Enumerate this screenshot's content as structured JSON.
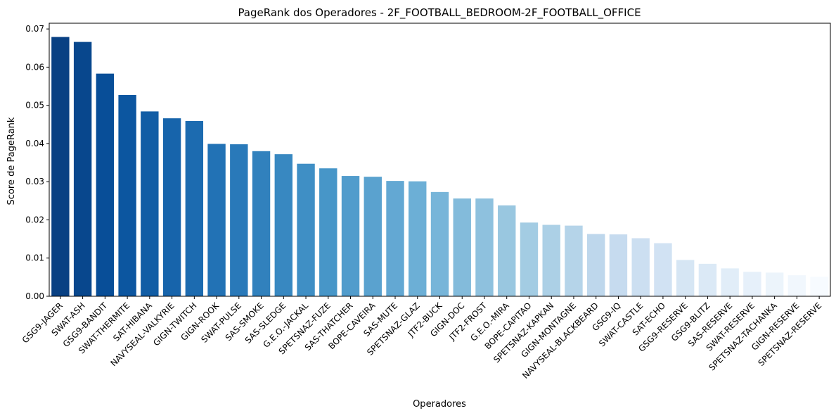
{
  "chart_data": {
    "type": "bar",
    "title": "PageRank dos Operadores - 2F_FOOTBALL_BEDROOM-2F_FOOTBALL_OFFICE",
    "xlabel": "Operadores",
    "ylabel": "Score de PageRank",
    "ylim": [
      0,
      0.0715
    ],
    "yticks": [
      0.0,
      0.01,
      0.02,
      0.03,
      0.04,
      0.05,
      0.06,
      0.07
    ],
    "ytick_labels": [
      "0.00",
      "0.01",
      "0.02",
      "0.03",
      "0.04",
      "0.05",
      "0.06",
      "0.07"
    ],
    "grid": false,
    "legend": "none",
    "colormap": "Blues (dark to light)",
    "color_start": "#08306b",
    "color_end": "#f7fbff",
    "categories": [
      "GSG9-JAGER",
      "SWAT-ASH",
      "GSG9-BANDIT",
      "SWAT-THERMITE",
      "SAT-HIBANA",
      "NAVYSEAL-VALKYRIE",
      "GIGN-TWITCH",
      "GIGN-ROOK",
      "SWAT-PULSE",
      "SAS-SMOKE",
      "SAS-SLEDGE",
      "G.E.O.-JACKAL",
      "SPETSNAZ-FUZE",
      "SAS-THATCHER",
      "BOPE-CAVEIRA",
      "SAS-MUTE",
      "SPETSNAZ-GLAZ",
      "JTF2-BUCK",
      "GIGN-DOC",
      "JTF2-FROST",
      "G.E.O.-MIRA",
      "BOPE-CAPITAO",
      "SPETSNAZ-KAPKAN",
      "GIGN-MONTAGNE",
      "NAVYSEAL-BLACKBEARD",
      "GSG9-IQ",
      "SWAT-CASTLE",
      "SAT-ECHO",
      "GSG9-RESERVE",
      "GSG9-BLITZ",
      "SAS-RESERVE",
      "SWAT-RESERVE",
      "SPETSNAZ-TACHANKA",
      "GIGN-RESERVE",
      "SPETSNAZ-RESERVE"
    ],
    "values": [
      0.0679,
      0.0666,
      0.0583,
      0.0527,
      0.0484,
      0.0466,
      0.0459,
      0.0399,
      0.0398,
      0.038,
      0.0372,
      0.0347,
      0.0335,
      0.0315,
      0.0313,
      0.0302,
      0.0301,
      0.0273,
      0.0256,
      0.0256,
      0.0238,
      0.0193,
      0.0187,
      0.0185,
      0.0163,
      0.0162,
      0.0152,
      0.0139,
      0.0095,
      0.0085,
      0.0073,
      0.0064,
      0.0062,
      0.0055,
      0.0051
    ]
  }
}
